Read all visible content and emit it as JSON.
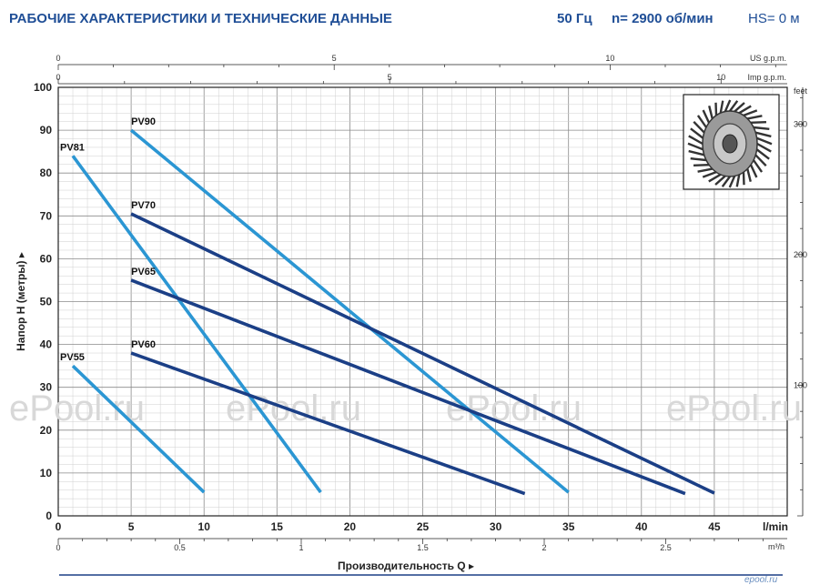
{
  "header": {
    "title": "РАБОЧИЕ ХАРАКТЕРИСТИКИ И ТЕХНИЧЕСКИЕ ДАННЫЕ",
    "frequency": "50 Гц",
    "speed": "n= 2900 об/мин",
    "hs": "HS= 0 м"
  },
  "watermark": "ePool.ru",
  "footer_logo": "epool.ru",
  "chart_data": {
    "type": "line",
    "xlabel": "Производительность Q",
    "ylabel": "Напор H (метры)",
    "x_unit": "l/min",
    "xlim": [
      0,
      50
    ],
    "ylim": [
      0,
      100
    ],
    "x_ticks": [
      0,
      5,
      10,
      15,
      20,
      25,
      30,
      35,
      40,
      45
    ],
    "y_ticks": [
      0,
      10,
      20,
      30,
      40,
      50,
      60,
      70,
      80,
      90,
      100
    ],
    "grid": true,
    "secondary_axes": {
      "us_gpm": {
        "label": "US g.p.m.",
        "ticks": [
          0,
          5,
          10
        ]
      },
      "imp_gpm": {
        "label": "Imp g.p.m.",
        "ticks": [
          0,
          5,
          10
        ]
      },
      "m3h": {
        "label": "m³/h",
        "ticks": [
          0,
          0.5,
          1,
          1.5,
          2,
          2.5
        ]
      },
      "feet": {
        "label": "feet",
        "ticks": [
          100,
          200,
          300
        ]
      }
    },
    "series": [
      {
        "name": "PV55",
        "color": "#2b96d3",
        "x": [
          1,
          10
        ],
        "y": [
          35,
          5.5
        ]
      },
      {
        "name": "PV81",
        "color": "#2b96d3",
        "x": [
          1,
          18
        ],
        "y": [
          84,
          5.5
        ]
      },
      {
        "name": "PV90",
        "color": "#2b96d3",
        "x": [
          5,
          35
        ],
        "y": [
          90,
          5.5
        ]
      },
      {
        "name": "PV60",
        "color": "#1b3f86",
        "x": [
          5,
          32
        ],
        "y": [
          38,
          5.2
        ]
      },
      {
        "name": "PV65",
        "color": "#1b3f86",
        "x": [
          5,
          43
        ],
        "y": [
          55,
          5.2
        ]
      },
      {
        "name": "PV70",
        "color": "#1b3f86",
        "x": [
          5,
          45
        ],
        "y": [
          70.5,
          5.3
        ]
      }
    ]
  }
}
